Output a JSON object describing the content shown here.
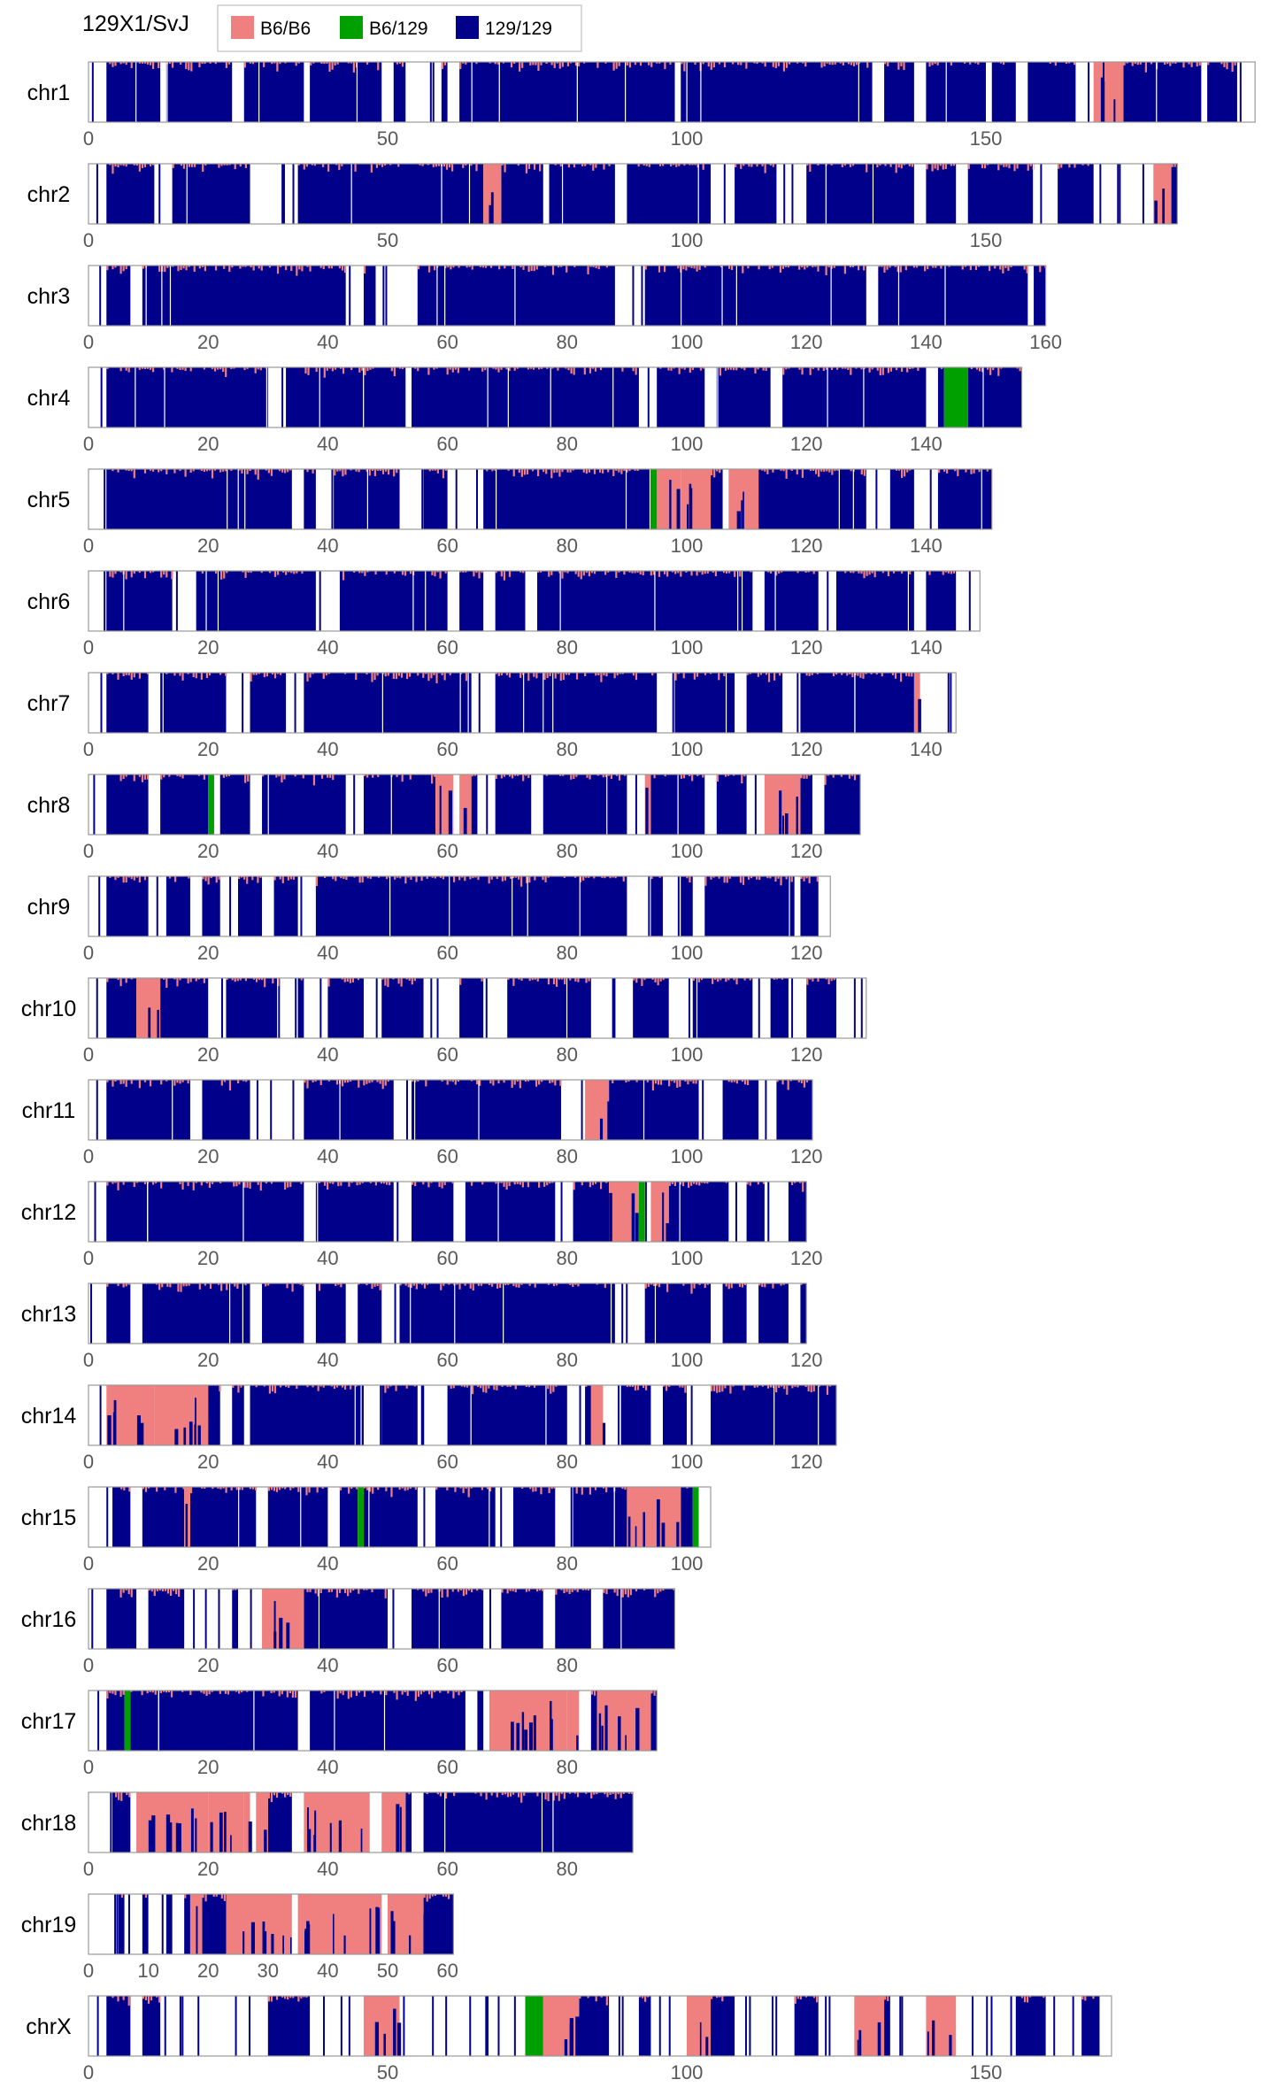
{
  "chart_data": {
    "type": "bar",
    "title": "129X1/SvJ",
    "xlabel": "",
    "ylabel": "",
    "unit": "Mb",
    "legend": {
      "placement": "top",
      "entries": [
        {
          "name": "B6/B6",
          "color": "#f08080"
        },
        {
          "name": "B6/129",
          "color": "#00a000"
        },
        {
          "name": "129/129",
          "color": "#00008b"
        }
      ]
    },
    "series": [
      {
        "name": "B6/B6",
        "color": "#f08080"
      },
      {
        "name": "B6/129",
        "color": "#00a000"
      },
      {
        "name": "129/129",
        "color": "#00008b"
      }
    ],
    "chromosomes": [
      {
        "name": "chr1",
        "length": 195,
        "ticks": [
          0,
          50,
          100,
          150
        ],
        "gaps": [
          [
            0,
            3
          ],
          [
            12,
            13
          ],
          [
            24,
            26
          ],
          [
            36,
            37
          ],
          [
            49,
            51
          ],
          [
            53,
            59
          ],
          [
            60,
            62
          ],
          [
            98,
            99
          ],
          [
            131,
            133
          ],
          [
            138,
            140
          ],
          [
            150,
            151
          ],
          [
            155,
            157
          ],
          [
            165,
            171
          ],
          [
            186,
            187
          ],
          [
            192,
            195
          ]
        ],
        "b6": [
          [
            168,
            173
          ]
        ],
        "het": []
      },
      {
        "name": "chr2",
        "length": 182,
        "ticks": [
          0,
          50,
          100,
          150
        ],
        "gaps": [
          [
            0,
            3
          ],
          [
            11,
            14
          ],
          [
            27,
            35
          ],
          [
            76,
            77
          ],
          [
            88,
            90
          ],
          [
            104,
            108
          ],
          [
            115,
            120
          ],
          [
            138,
            140
          ],
          [
            145,
            147
          ],
          [
            158,
            162
          ],
          [
            168,
            178
          ]
        ],
        "b6": [
          [
            66,
            69
          ],
          [
            178,
            181
          ]
        ],
        "het": []
      },
      {
        "name": "chr3",
        "length": 160,
        "ticks": [
          0,
          20,
          40,
          60,
          80,
          100,
          120,
          140,
          160
        ],
        "gaps": [
          [
            0,
            3
          ],
          [
            7,
            9
          ],
          [
            43,
            46
          ],
          [
            48,
            55
          ],
          [
            88,
            93
          ],
          [
            130,
            132
          ],
          [
            157,
            158
          ]
        ],
        "b6": [],
        "het": []
      },
      {
        "name": "chr4",
        "length": 156,
        "ticks": [
          0,
          20,
          40,
          60,
          80,
          100,
          120,
          140
        ],
        "gaps": [
          [
            0,
            3
          ],
          [
            30,
            33
          ],
          [
            53,
            54
          ],
          [
            92,
            95
          ],
          [
            103,
            105
          ],
          [
            114,
            116
          ],
          [
            140,
            142
          ]
        ],
        "b6": [],
        "het": [
          [
            143,
            147
          ]
        ]
      },
      {
        "name": "chr5",
        "length": 151,
        "ticks": [
          0,
          20,
          40,
          60,
          80,
          100,
          120,
          140
        ],
        "gaps": [
          [
            0,
            3
          ],
          [
            34,
            36
          ],
          [
            38,
            41
          ],
          [
            52,
            56
          ],
          [
            60,
            66
          ],
          [
            106,
            107
          ],
          [
            130,
            134
          ],
          [
            138,
            142
          ]
        ],
        "b6": [
          [
            95,
            99
          ],
          [
            99,
            104
          ],
          [
            107,
            112
          ]
        ],
        "het": [
          [
            94,
            95
          ]
        ]
      },
      {
        "name": "chr6",
        "length": 149,
        "ticks": [
          0,
          20,
          40,
          60,
          80,
          100,
          120,
          140
        ],
        "gaps": [
          [
            0,
            3
          ],
          [
            14,
            18
          ],
          [
            38,
            42
          ],
          [
            60,
            62
          ],
          [
            66,
            68
          ],
          [
            73,
            75
          ],
          [
            111,
            113
          ],
          [
            122,
            125
          ],
          [
            138,
            140
          ],
          [
            145,
            149
          ]
        ],
        "b6": [],
        "het": []
      },
      {
        "name": "chr7",
        "length": 145,
        "ticks": [
          0,
          20,
          40,
          60,
          80,
          100,
          120,
          140
        ],
        "gaps": [
          [
            0,
            3
          ],
          [
            10,
            12
          ],
          [
            23,
            27
          ],
          [
            33,
            36
          ],
          [
            64,
            68
          ],
          [
            95,
            98
          ],
          [
            108,
            110
          ],
          [
            116,
            119
          ],
          [
            138,
            145
          ]
        ],
        "b6": [
          [
            138,
            139
          ]
        ],
        "het": []
      },
      {
        "name": "chr8",
        "length": 129,
        "ticks": [
          0,
          20,
          40,
          60,
          80,
          100,
          120
        ],
        "gaps": [
          [
            0,
            3
          ],
          [
            10,
            12
          ],
          [
            20,
            22
          ],
          [
            27,
            29
          ],
          [
            43,
            46
          ],
          [
            60,
            62
          ],
          [
            65,
            68
          ],
          [
            74,
            76
          ],
          [
            90,
            93
          ],
          [
            103,
            105
          ],
          [
            110,
            113
          ],
          [
            121,
            123
          ]
        ],
        "b6": [
          [
            58,
            61
          ],
          [
            62,
            64
          ],
          [
            93,
            94
          ],
          [
            113,
            119
          ]
        ],
        "het": [
          [
            20,
            21
          ]
        ]
      },
      {
        "name": "chr9",
        "length": 124,
        "ticks": [
          0,
          20,
          40,
          60,
          80,
          100,
          120
        ],
        "gaps": [
          [
            0,
            3
          ],
          [
            10,
            13
          ],
          [
            17,
            19
          ],
          [
            22,
            25
          ],
          [
            29,
            31
          ],
          [
            35,
            38
          ],
          [
            90,
            94
          ],
          [
            96,
            99
          ],
          [
            101,
            103
          ],
          [
            118,
            119
          ],
          [
            122,
            124
          ]
        ],
        "b6": [],
        "het": []
      },
      {
        "name": "chr10",
        "length": 130,
        "ticks": [
          0,
          20,
          40,
          60,
          80,
          100,
          120
        ],
        "gaps": [
          [
            0,
            3
          ],
          [
            20,
            23
          ],
          [
            32,
            35
          ],
          [
            36,
            40
          ],
          [
            46,
            49
          ],
          [
            56,
            62
          ],
          [
            66,
            70
          ],
          [
            84,
            91
          ],
          [
            97,
            101
          ],
          [
            111,
            114
          ],
          [
            117,
            120
          ],
          [
            125,
            130
          ]
        ],
        "b6": [
          [
            8,
            12
          ]
        ],
        "het": []
      },
      {
        "name": "chr11",
        "length": 121,
        "ticks": [
          0,
          20,
          40,
          60,
          80,
          100,
          120
        ],
        "gaps": [
          [
            0,
            3
          ],
          [
            17,
            19
          ],
          [
            27,
            36
          ],
          [
            51,
            54
          ],
          [
            79,
            83
          ],
          [
            102,
            106
          ],
          [
            112,
            115
          ]
        ],
        "b6": [
          [
            83,
            87
          ]
        ],
        "het": []
      },
      {
        "name": "chr12",
        "length": 120,
        "ticks": [
          0,
          20,
          40,
          60,
          80,
          100,
          120
        ],
        "gaps": [
          [
            0,
            3
          ],
          [
            36,
            38
          ],
          [
            51,
            54
          ],
          [
            61,
            63
          ],
          [
            78,
            81
          ],
          [
            91,
            94
          ],
          [
            107,
            110
          ],
          [
            113,
            117
          ]
        ],
        "b6": [
          [
            87,
            92
          ],
          [
            94,
            97
          ]
        ],
        "het": [
          [
            92,
            93
          ]
        ]
      },
      {
        "name": "chr13",
        "length": 120,
        "ticks": [
          0,
          20,
          40,
          60,
          80,
          100,
          120
        ],
        "gaps": [
          [
            0,
            3
          ],
          [
            7,
            9
          ],
          [
            27,
            29
          ],
          [
            36,
            38
          ],
          [
            43,
            45
          ],
          [
            49,
            52
          ],
          [
            88,
            93
          ],
          [
            104,
            106
          ],
          [
            110,
            112
          ],
          [
            117,
            119
          ]
        ],
        "b6": [],
        "het": []
      },
      {
        "name": "chr14",
        "length": 125,
        "ticks": [
          0,
          20,
          40,
          60,
          80,
          100,
          120
        ],
        "gaps": [
          [
            0,
            3
          ],
          [
            22,
            24
          ],
          [
            26,
            27
          ],
          [
            46,
            49
          ],
          [
            55,
            60
          ],
          [
            80,
            83
          ],
          [
            86,
            89
          ],
          [
            94,
            96
          ],
          [
            100,
            104
          ]
        ],
        "b6": [
          [
            3,
            11
          ],
          [
            11,
            20
          ],
          [
            84,
            86
          ]
        ],
        "het": []
      },
      {
        "name": "chr15",
        "length": 104,
        "ticks": [
          0,
          20,
          40,
          60,
          80,
          100
        ],
        "gaps": [
          [
            0,
            4
          ],
          [
            7,
            9
          ],
          [
            28,
            30
          ],
          [
            40,
            42
          ],
          [
            55,
            58
          ],
          [
            68,
            71
          ],
          [
            78,
            81
          ],
          [
            102,
            104
          ]
        ],
        "b6": [
          [
            16,
            17
          ],
          [
            90,
            99
          ]
        ],
        "het": [
          [
            45,
            46
          ],
          [
            101,
            102
          ]
        ]
      },
      {
        "name": "chr16",
        "length": 98,
        "ticks": [
          0,
          20,
          40,
          60,
          80
        ],
        "gaps": [
          [
            0,
            3
          ],
          [
            8,
            10
          ],
          [
            16,
            24
          ],
          [
            25,
            29
          ],
          [
            50,
            54
          ],
          [
            66,
            69
          ],
          [
            76,
            78
          ],
          [
            84,
            86
          ]
        ],
        "b6": [
          [
            29,
            36
          ]
        ],
        "het": []
      },
      {
        "name": "chr17",
        "length": 95,
        "ticks": [
          0,
          20,
          40,
          60,
          80
        ],
        "gaps": [
          [
            0,
            3
          ],
          [
            35,
            37
          ],
          [
            63,
            65
          ],
          [
            66,
            67
          ],
          [
            70,
            72
          ],
          [
            82,
            84
          ]
        ],
        "b6": [
          [
            67,
            80
          ],
          [
            80,
            82
          ],
          [
            85,
            94
          ]
        ],
        "het": [
          [
            6,
            7
          ]
        ]
      },
      {
        "name": "chr18",
        "length": 91,
        "ticks": [
          0,
          20,
          40,
          60,
          80
        ],
        "gaps": [
          [
            0,
            4
          ],
          [
            7,
            8
          ],
          [
            22,
            24
          ],
          [
            26,
            28
          ],
          [
            34,
            36
          ],
          [
            47,
            49
          ],
          [
            54,
            56
          ]
        ],
        "b6": [
          [
            8,
            20
          ],
          [
            20,
            26
          ],
          [
            26,
            27
          ],
          [
            28,
            30
          ],
          [
            36,
            47
          ],
          [
            49,
            53
          ]
        ],
        "het": []
      },
      {
        "name": "chr19",
        "length": 61,
        "ticks": [
          0,
          10,
          20,
          30,
          40,
          50,
          60
        ],
        "gaps": [
          [
            0,
            5
          ],
          [
            6,
            9
          ],
          [
            10,
            13
          ],
          [
            14,
            16
          ],
          [
            26,
            27
          ],
          [
            34,
            35
          ],
          [
            49,
            50
          ]
        ],
        "b6": [
          [
            17,
            19
          ],
          [
            23,
            34
          ],
          [
            35,
            49
          ],
          [
            50,
            56
          ]
        ],
        "het": []
      },
      {
        "name": "chrX",
        "length": 171,
        "ticks": [
          0,
          50,
          100,
          150
        ],
        "gaps": [
          [
            0,
            3
          ],
          [
            7,
            9
          ],
          [
            12,
            30
          ],
          [
            37,
            46
          ],
          [
            52,
            68
          ],
          [
            68,
            73
          ],
          [
            87,
            92
          ],
          [
            94,
            100
          ],
          [
            108,
            118
          ],
          [
            122,
            128
          ],
          [
            134,
            140
          ],
          [
            145,
            155
          ],
          [
            160,
            166
          ],
          [
            169,
            171
          ]
        ],
        "b6": [
          [
            46,
            52
          ],
          [
            76,
            82
          ],
          [
            100,
            104
          ],
          [
            128,
            133
          ],
          [
            140,
            145
          ]
        ],
        "het": [
          [
            73,
            76
          ]
        ]
      }
    ]
  }
}
